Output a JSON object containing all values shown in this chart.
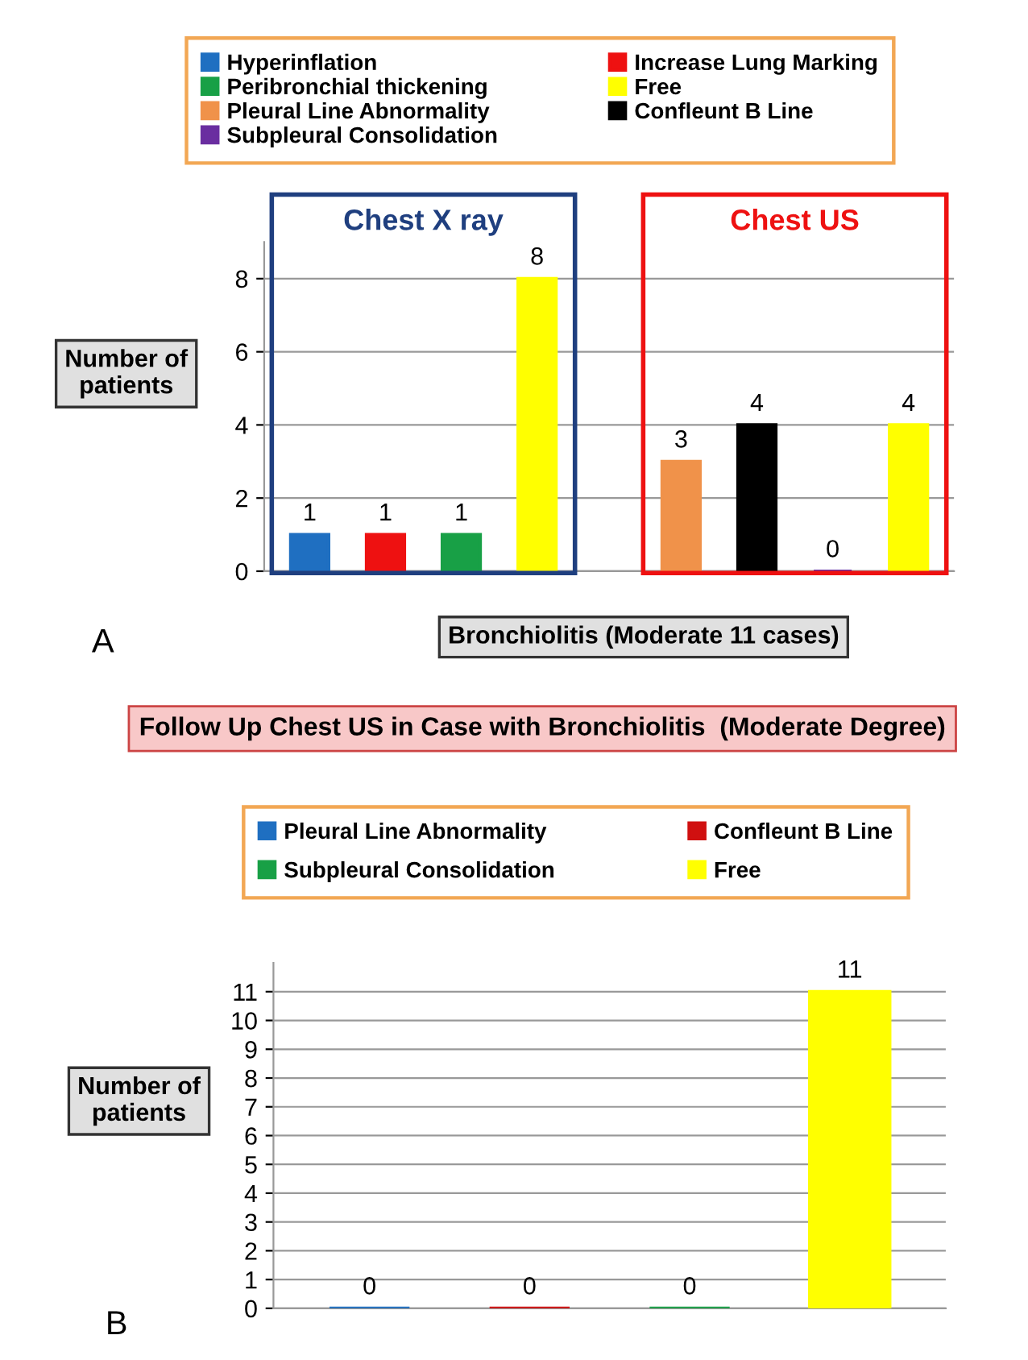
{
  "chart_data": [
    {
      "type": "bar",
      "categories": [
        null,
        null,
        null,
        null,
        null,
        null,
        null,
        null
      ],
      "series": [
        {
          "name": "Hyperinflation",
          "color": "#1f6fc1",
          "values": [
            1,
            null,
            null,
            null,
            null,
            null,
            null,
            null
          ]
        },
        {
          "name": "Increase Lung Marking",
          "color": "#ee1111",
          "values": [
            null,
            1,
            null,
            null,
            null,
            null,
            null,
            null
          ]
        },
        {
          "name": "Peribronchial thickening",
          "color": "#18a046",
          "values": [
            null,
            null,
            1,
            null,
            null,
            null,
            null,
            null
          ]
        },
        {
          "name": "Free",
          "color": "#ffff00",
          "values": [
            null,
            null,
            null,
            8,
            null,
            null,
            null,
            4
          ]
        },
        {
          "name": "Pleural Line Abnormality",
          "color": "#f0924a",
          "values": [
            null,
            null,
            null,
            null,
            3,
            null,
            null,
            null
          ]
        },
        {
          "name": "Confleunt B Line",
          "color": "#000000",
          "values": [
            null,
            null,
            null,
            null,
            null,
            4,
            null,
            null
          ]
        },
        {
          "name": "Subpleural Consolidation",
          "color": "#6a2ea0",
          "values": [
            null,
            null,
            null,
            null,
            null,
            null,
            0,
            null
          ]
        }
      ],
      "ylabel": "Number of patients",
      "xlabel": "Bronchiolitis (Moderate 11 cases)",
      "annotations": [
        "Chest X ray",
        "Chest US",
        "A"
      ],
      "ylim": [
        0,
        9
      ],
      "yticks": [
        0,
        2,
        4,
        6,
        8
      ],
      "grid": "y",
      "legend": "top",
      "data_labels": true
    },
    {
      "type": "bar",
      "categories": [
        null,
        null,
        null,
        null
      ],
      "title": "Follow Up Chest US in Case with Bronchiolitis  (Moderate Degree)",
      "series": [
        {
          "name": "Pleural Line Abnormality",
          "color": "#1f6fc1",
          "values": [
            0,
            null,
            null,
            null
          ]
        },
        {
          "name": "Confleunt B Line",
          "color": "#d01010",
          "values": [
            null,
            0,
            null,
            null
          ]
        },
        {
          "name": "Subpleural Consolidation",
          "color": "#18a046",
          "values": [
            null,
            null,
            0,
            null
          ]
        },
        {
          "name": "Free",
          "color": "#ffff00",
          "values": [
            null,
            null,
            null,
            11
          ]
        }
      ],
      "ylabel": "Number of patients",
      "annotations": [
        "B"
      ],
      "ylim": [
        0,
        12
      ],
      "yticks": [
        0,
        1,
        2,
        3,
        4,
        5,
        6,
        7,
        8,
        9,
        10,
        11
      ],
      "grid": "y",
      "legend": "top",
      "data_labels": true
    }
  ]
}
